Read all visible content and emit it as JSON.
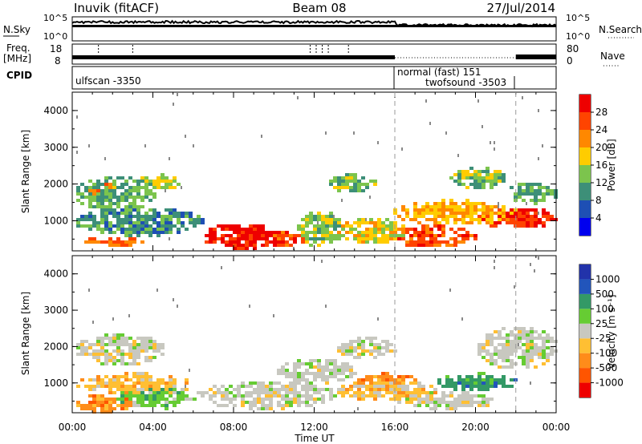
{
  "header": {
    "station": "Inuvik (fitACF)",
    "beam": "Beam 08",
    "date": "27/Jul/2014"
  },
  "strip": {
    "nsky_label": "N.Sky",
    "nsearch_label": "N.Search",
    "freq_label": "Freq.",
    "freq_unit": "[MHz]",
    "nave_label": "Nave",
    "cpid_label": "CPID",
    "noise_ticks_left": [
      "10^5",
      "10^0"
    ],
    "noise_ticks_right": [
      "10^5",
      "10^0"
    ],
    "freq_ticks": [
      "18",
      "8"
    ],
    "nave_ticks": [
      "80",
      "0"
    ]
  },
  "cpid_modes": [
    {
      "label": "ulfscan -3350",
      "start_hour": 0,
      "end_hour": 16
    },
    {
      "label": "normal (fast) 151",
      "start_hour": 16,
      "end_hour": 24
    },
    {
      "label": "twofsound -3503",
      "start_hour": 16,
      "end_hour": 22
    }
  ],
  "chart_data": [
    {
      "type": "heatmap",
      "name": "power",
      "ylabel": "Slant Range [km]",
      "xlabel": "",
      "x_unit": "hour UT",
      "xlim": [
        0,
        24
      ],
      "ylim": [
        180,
        4500
      ],
      "yticks": [
        "1000",
        "2000",
        "3000",
        "4000"
      ],
      "colorbar_label": "Power [dB]",
      "colorbar_ticks": [
        "4",
        "8",
        "12",
        "16",
        "20",
        "24",
        "28"
      ],
      "colorbar_range": [
        0,
        32
      ],
      "colors": [
        "#0000ee",
        "#1e4fb4",
        "#3d8f78",
        "#7cc44d",
        "#ffcc00",
        "#ff8800",
        "#ff4400",
        "#ee0000"
      ],
      "blobs": [
        {
          "x0": 0.0,
          "x1": 4.2,
          "r0": 1300,
          "r1": 2250,
          "level": 12
        },
        {
          "x0": 0.3,
          "x1": 2.5,
          "r0": 1600,
          "r1": 2100,
          "level": 22
        },
        {
          "x0": 3.0,
          "x1": 5.5,
          "r0": 1900,
          "r1": 2300,
          "level": 16
        },
        {
          "x0": 0.0,
          "x1": 6.5,
          "r0": 600,
          "r1": 1400,
          "level": 10
        },
        {
          "x0": 0.5,
          "x1": 3.5,
          "r0": 300,
          "r1": 600,
          "level": 24
        },
        {
          "x0": 6.2,
          "x1": 10.5,
          "r0": 250,
          "r1": 950,
          "level": 30
        },
        {
          "x0": 9.5,
          "x1": 11.5,
          "r0": 300,
          "r1": 800,
          "level": 26
        },
        {
          "x0": 11.0,
          "x1": 13.5,
          "r0": 300,
          "r1": 1300,
          "level": 14
        },
        {
          "x0": 12.5,
          "x1": 15.0,
          "r0": 1800,
          "r1": 2300,
          "level": 14
        },
        {
          "x0": 13.0,
          "x1": 16.5,
          "r0": 400,
          "r1": 1100,
          "level": 18
        },
        {
          "x0": 15.5,
          "x1": 20.0,
          "r0": 300,
          "r1": 900,
          "level": 26
        },
        {
          "x0": 15.8,
          "x1": 22.0,
          "r0": 900,
          "r1": 1600,
          "level": 20
        },
        {
          "x0": 18.5,
          "x1": 21.5,
          "r0": 1900,
          "r1": 2500,
          "level": 14
        },
        {
          "x0": 20.0,
          "x1": 24.0,
          "r0": 800,
          "r1": 1400,
          "level": 28
        },
        {
          "x0": 21.5,
          "x1": 24.0,
          "r0": 1500,
          "r1": 2100,
          "level": 12
        }
      ]
    },
    {
      "type": "heatmap",
      "name": "velocity",
      "ylabel": "Slant Range [km]",
      "xlabel": "Time UT",
      "x_unit": "hour UT",
      "xlim": [
        0,
        24
      ],
      "ylim": [
        180,
        4500
      ],
      "yticks": [
        "1000",
        "2000",
        "3000",
        "4000"
      ],
      "xticks": [
        "00:00",
        "04:00",
        "08:00",
        "12:00",
        "16:00",
        "20:00",
        "00:00"
      ],
      "colorbar_label": "Velocity [m s⁻¹]",
      "colorbar_ticks": [
        "-1000",
        "-500",
        "-100",
        "-25",
        "25",
        "100",
        "500",
        "1000"
      ],
      "colors": [
        "#ee0000",
        "#ff5500",
        "#ff8c1a",
        "#ffbf33",
        "#c8c8c0",
        "#66cc33",
        "#339966",
        "#2255bb",
        "#2233aa"
      ],
      "ground_scatter_color": "#c8c8c0",
      "blobs": [
        {
          "x0": 0.0,
          "x1": 4.5,
          "r0": 1500,
          "r1": 2400,
          "cls": 4
        },
        {
          "x0": 0.0,
          "x1": 3.0,
          "r0": 200,
          "r1": 700,
          "cls": 2
        },
        {
          "x0": 0.0,
          "x1": 6.0,
          "r0": 700,
          "r1": 1300,
          "cls": 3
        },
        {
          "x0": 2.0,
          "x1": 6.0,
          "r0": 300,
          "r1": 900,
          "cls": 5
        },
        {
          "x0": 6.0,
          "x1": 13.0,
          "r0": 300,
          "r1": 1100,
          "cls": 4
        },
        {
          "x0": 10.0,
          "x1": 14.0,
          "r0": 1000,
          "r1": 1700,
          "cls": 4
        },
        {
          "x0": 13.0,
          "x1": 16.0,
          "r0": 1700,
          "r1": 2300,
          "cls": 4
        },
        {
          "x0": 13.0,
          "x1": 18.0,
          "r0": 500,
          "r1": 1100,
          "cls": 3
        },
        {
          "x0": 16.0,
          "x1": 21.0,
          "r0": 300,
          "r1": 800,
          "cls": 4
        },
        {
          "x0": 18.0,
          "x1": 22.0,
          "r0": 800,
          "r1": 1300,
          "cls": 6
        },
        {
          "x0": 20.0,
          "x1": 24.0,
          "r0": 1400,
          "r1": 2600,
          "cls": 4
        },
        {
          "x0": 14.0,
          "x1": 17.0,
          "r0": 900,
          "r1": 1300,
          "cls": 2
        }
      ]
    }
  ]
}
